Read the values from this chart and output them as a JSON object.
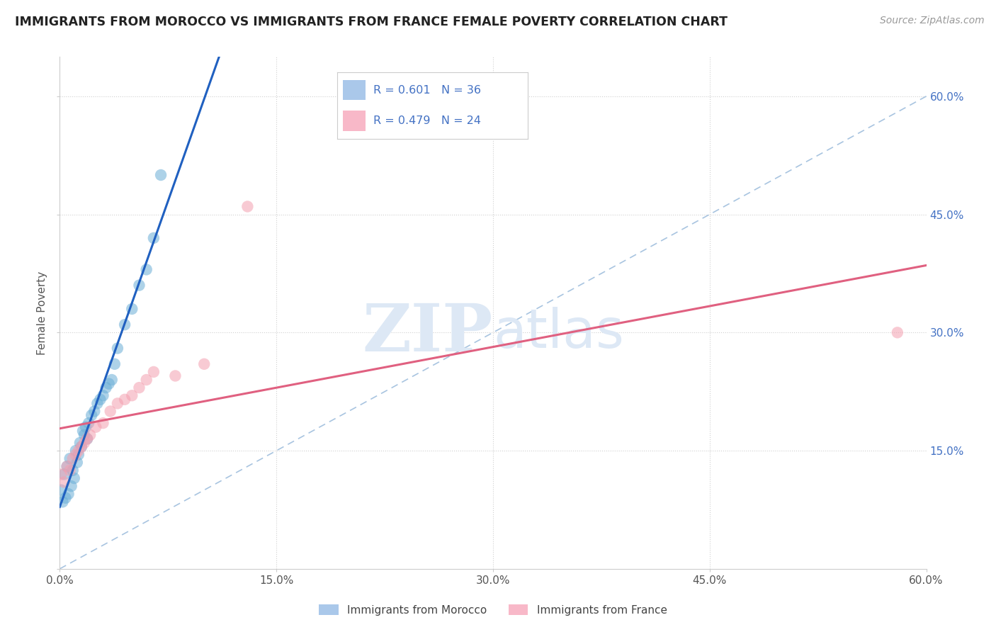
{
  "title": "IMMIGRANTS FROM MOROCCO VS IMMIGRANTS FROM FRANCE FEMALE POVERTY CORRELATION CHART",
  "source": "Source: ZipAtlas.com",
  "ylabel": "Female Poverty",
  "xlim": [
    0.0,
    0.6
  ],
  "ylim": [
    0.0,
    0.65
  ],
  "morocco_color": "#6baed6",
  "france_color": "#f4a0b0",
  "morocco_R": 0.601,
  "morocco_N": 36,
  "france_R": 0.479,
  "france_N": 24,
  "legend_text_color": "#4472c4",
  "morocco_line_color": "#2060c0",
  "france_line_color": "#e06080",
  "dash_line_color": "#a8c4e0",
  "watermark_color": "#dde8f5",
  "background_color": "#ffffff",
  "grid_color": "#d0d0d0",
  "morocco_x": [
    0.001,
    0.002,
    0.003,
    0.004,
    0.005,
    0.006,
    0.007,
    0.008,
    0.009,
    0.01,
    0.011,
    0.012,
    0.013,
    0.014,
    0.015,
    0.016,
    0.017,
    0.018,
    0.019,
    0.02,
    0.022,
    0.024,
    0.026,
    0.028,
    0.03,
    0.032,
    0.034,
    0.036,
    0.038,
    0.04,
    0.045,
    0.05,
    0.055,
    0.06,
    0.065,
    0.07
  ],
  "morocco_y": [
    0.1,
    0.085,
    0.12,
    0.09,
    0.13,
    0.095,
    0.14,
    0.105,
    0.125,
    0.115,
    0.15,
    0.135,
    0.145,
    0.16,
    0.155,
    0.175,
    0.17,
    0.18,
    0.165,
    0.185,
    0.195,
    0.2,
    0.21,
    0.215,
    0.22,
    0.23,
    0.235,
    0.24,
    0.26,
    0.28,
    0.31,
    0.33,
    0.36,
    0.38,
    0.42,
    0.5
  ],
  "france_x": [
    0.001,
    0.003,
    0.005,
    0.007,
    0.009,
    0.011,
    0.013,
    0.015,
    0.017,
    0.019,
    0.021,
    0.025,
    0.03,
    0.035,
    0.04,
    0.045,
    0.05,
    0.055,
    0.06,
    0.065,
    0.08,
    0.1,
    0.13,
    0.58
  ],
  "france_y": [
    0.12,
    0.11,
    0.13,
    0.125,
    0.14,
    0.145,
    0.15,
    0.155,
    0.16,
    0.165,
    0.17,
    0.18,
    0.185,
    0.2,
    0.21,
    0.215,
    0.22,
    0.23,
    0.24,
    0.25,
    0.245,
    0.26,
    0.46,
    0.3
  ]
}
